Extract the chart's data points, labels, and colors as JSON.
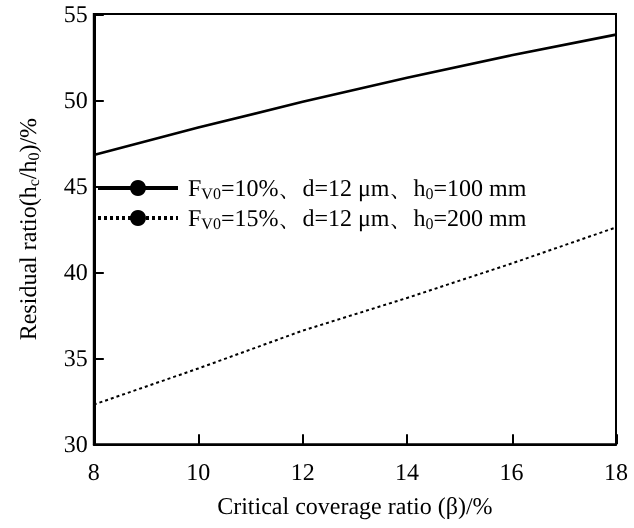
{
  "chart_data": {
    "type": "line",
    "xlabel": "Critical coverage ratio (β)/%",
    "ylabel": "Residual ratio(h$_{c}$/h$_{0}$)/%",
    "x": [
      8,
      10,
      12,
      14,
      16,
      18
    ],
    "series": [
      {
        "name": "F$_{V0}$=10%、d=12 μm、h$_{0}$=100 mm",
        "color": "#000000",
        "line_style": "solid",
        "values": [
          46.8,
          48.4,
          49.9,
          51.3,
          52.6,
          53.8
        ]
      },
      {
        "name": "F$_{V0}$=15%、d=12 μm、h$_{0}$=200 mm",
        "color": "#000000",
        "line_style": "dotted",
        "values": [
          32.3,
          34.4,
          36.6,
          38.5,
          40.5,
          42.6
        ]
      }
    ],
    "xlim": [
      8,
      18
    ],
    "xticks": [
      8,
      10,
      12,
      14,
      16,
      18
    ],
    "ylim": [
      30,
      55
    ],
    "yticks": [
      30,
      35,
      40,
      45,
      50,
      55
    ],
    "grid": false,
    "legend": "left",
    "marker": "none"
  }
}
